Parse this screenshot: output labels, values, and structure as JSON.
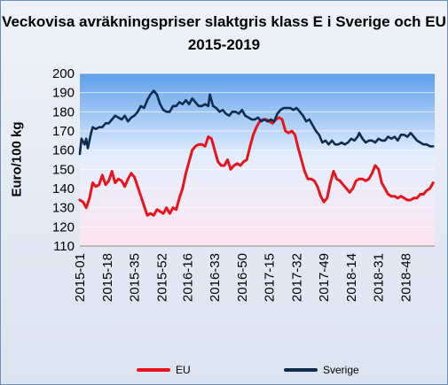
{
  "chart_data": {
    "type": "line",
    "title": "Veckovisa avräkningspriser slaktgris klass E i Sverige och EU 2015-2019",
    "ylabel": "Euro/100 kg",
    "xlabel": "",
    "ylim": [
      110,
      200
    ],
    "yticks": [
      110,
      120,
      130,
      140,
      150,
      160,
      170,
      180,
      190,
      200
    ],
    "xtick_labels": [
      "2015-01",
      "2015-18",
      "2015-35",
      "2015-52",
      "2016-16",
      "2016-33",
      "2016-50",
      "2017-15",
      "2017-32",
      "2017-49",
      "2018-14",
      "2018-31",
      "2018-48"
    ],
    "x_range": [
      "2015-01",
      "2019-14"
    ],
    "grid": true,
    "legend_position": "bottom",
    "series": [
      {
        "name": "EU",
        "color": "#e8141b",
        "points": [
          [
            "2015-01",
            134
          ],
          [
            "2015-03",
            133
          ],
          [
            "2015-05",
            130
          ],
          [
            "2015-07",
            135
          ],
          [
            "2015-09",
            143
          ],
          [
            "2015-11",
            141
          ],
          [
            "2015-13",
            142
          ],
          [
            "2015-15",
            147
          ],
          [
            "2015-17",
            142
          ],
          [
            "2015-19",
            144
          ],
          [
            "2015-21",
            149
          ],
          [
            "2015-23",
            143
          ],
          [
            "2015-25",
            145
          ],
          [
            "2015-27",
            144
          ],
          [
            "2015-29",
            141
          ],
          [
            "2015-31",
            145
          ],
          [
            "2015-33",
            148
          ],
          [
            "2015-35",
            146
          ],
          [
            "2015-37",
            141
          ],
          [
            "2015-39",
            136
          ],
          [
            "2015-41",
            131
          ],
          [
            "2015-43",
            126
          ],
          [
            "2015-45",
            127
          ],
          [
            "2015-47",
            126
          ],
          [
            "2015-49",
            129
          ],
          [
            "2015-51",
            128
          ],
          [
            "2016-01",
            127
          ],
          [
            "2016-03",
            130
          ],
          [
            "2016-05",
            127
          ],
          [
            "2016-07",
            130
          ],
          [
            "2016-09",
            129
          ],
          [
            "2016-11",
            135
          ],
          [
            "2016-13",
            140
          ],
          [
            "2016-15",
            148
          ],
          [
            "2016-17",
            154
          ],
          [
            "2016-19",
            160
          ],
          [
            "2016-21",
            162
          ],
          [
            "2016-23",
            163
          ],
          [
            "2016-25",
            163
          ],
          [
            "2016-27",
            162
          ],
          [
            "2016-29",
            167
          ],
          [
            "2016-31",
            166
          ],
          [
            "2016-33",
            160
          ],
          [
            "2016-35",
            154
          ],
          [
            "2016-37",
            152
          ],
          [
            "2016-39",
            152
          ],
          [
            "2016-41",
            155
          ],
          [
            "2016-43",
            150
          ],
          [
            "2016-45",
            152
          ],
          [
            "2016-47",
            153
          ],
          [
            "2016-49",
            152
          ],
          [
            "2016-51",
            154
          ],
          [
            "2017-01",
            155
          ],
          [
            "2017-03",
            162
          ],
          [
            "2017-05",
            168
          ],
          [
            "2017-07",
            172
          ],
          [
            "2017-09",
            175
          ],
          [
            "2017-11",
            176
          ],
          [
            "2017-13",
            176
          ],
          [
            "2017-15",
            175
          ],
          [
            "2017-17",
            174
          ],
          [
            "2017-19",
            176
          ],
          [
            "2017-21",
            177
          ],
          [
            "2017-23",
            176
          ],
          [
            "2017-25",
            170
          ],
          [
            "2017-27",
            169
          ],
          [
            "2017-29",
            170
          ],
          [
            "2017-31",
            168
          ],
          [
            "2017-33",
            161
          ],
          [
            "2017-35",
            155
          ],
          [
            "2017-37",
            149
          ],
          [
            "2017-39",
            145
          ],
          [
            "2017-41",
            145
          ],
          [
            "2017-43",
            144
          ],
          [
            "2017-45",
            141
          ],
          [
            "2017-47",
            136
          ],
          [
            "2017-49",
            133
          ],
          [
            "2017-51",
            135
          ],
          [
            "2018-01",
            143
          ],
          [
            "2018-03",
            149
          ],
          [
            "2018-05",
            145
          ],
          [
            "2018-07",
            144
          ],
          [
            "2018-09",
            142
          ],
          [
            "2018-11",
            140
          ],
          [
            "2018-13",
            138
          ],
          [
            "2018-15",
            140
          ],
          [
            "2018-17",
            144
          ],
          [
            "2018-19",
            145
          ],
          [
            "2018-21",
            145
          ],
          [
            "2018-23",
            144
          ],
          [
            "2018-25",
            145
          ],
          [
            "2018-27",
            148
          ],
          [
            "2018-29",
            152
          ],
          [
            "2018-31",
            150
          ],
          [
            "2018-33",
            143
          ],
          [
            "2018-35",
            140
          ],
          [
            "2018-37",
            137
          ],
          [
            "2018-39",
            136
          ],
          [
            "2018-41",
            136
          ],
          [
            "2018-43",
            135
          ],
          [
            "2018-45",
            136
          ],
          [
            "2018-47",
            135
          ],
          [
            "2018-49",
            134
          ],
          [
            "2018-51",
            134
          ],
          [
            "2019-01",
            135
          ],
          [
            "2019-03",
            135
          ],
          [
            "2019-05",
            137
          ],
          [
            "2019-07",
            137
          ],
          [
            "2019-09",
            139
          ],
          [
            "2019-11",
            140
          ],
          [
            "2019-13",
            143
          ]
        ]
      },
      {
        "name": "Sverige",
        "color": "#0f2b4d",
        "points": [
          [
            "2015-01",
            158
          ],
          [
            "2015-02",
            166
          ],
          [
            "2015-04",
            163
          ],
          [
            "2015-05",
            166
          ],
          [
            "2015-06",
            161
          ],
          [
            "2015-08",
            169
          ],
          [
            "2015-09",
            172
          ],
          [
            "2015-11",
            171
          ],
          [
            "2015-13",
            172
          ],
          [
            "2015-15",
            172
          ],
          [
            "2015-17",
            174
          ],
          [
            "2015-19",
            174
          ],
          [
            "2015-21",
            176
          ],
          [
            "2015-23",
            178
          ],
          [
            "2015-25",
            177
          ],
          [
            "2015-27",
            176
          ],
          [
            "2015-29",
            178
          ],
          [
            "2015-31",
            175
          ],
          [
            "2015-33",
            177
          ],
          [
            "2015-35",
            178
          ],
          [
            "2015-37",
            180
          ],
          [
            "2015-39",
            183
          ],
          [
            "2015-41",
            182
          ],
          [
            "2015-43",
            186
          ],
          [
            "2015-45",
            189
          ],
          [
            "2015-47",
            191
          ],
          [
            "2015-49",
            189
          ],
          [
            "2015-51",
            184
          ],
          [
            "2016-01",
            181
          ],
          [
            "2016-03",
            180
          ],
          [
            "2016-05",
            180
          ],
          [
            "2016-07",
            183
          ],
          [
            "2016-09",
            183
          ],
          [
            "2016-11",
            185
          ],
          [
            "2016-13",
            184
          ],
          [
            "2016-15",
            186
          ],
          [
            "2016-17",
            184
          ],
          [
            "2016-19",
            187
          ],
          [
            "2016-21",
            185
          ],
          [
            "2016-23",
            183
          ],
          [
            "2016-25",
            183
          ],
          [
            "2016-27",
            184
          ],
          [
            "2016-29",
            183
          ],
          [
            "2016-30",
            189
          ],
          [
            "2016-32",
            183
          ],
          [
            "2016-34",
            182
          ],
          [
            "2016-36",
            180
          ],
          [
            "2016-38",
            181
          ],
          [
            "2016-40",
            179
          ],
          [
            "2016-42",
            178
          ],
          [
            "2016-44",
            180
          ],
          [
            "2016-46",
            180
          ],
          [
            "2016-48",
            179
          ],
          [
            "2016-50",
            181
          ],
          [
            "2016-52",
            178
          ],
          [
            "2017-02",
            177
          ],
          [
            "2017-04",
            176
          ],
          [
            "2017-06",
            176
          ],
          [
            "2017-08",
            177
          ],
          [
            "2017-10",
            175
          ],
          [
            "2017-12",
            176
          ],
          [
            "2017-14",
            175
          ],
          [
            "2017-16",
            176
          ],
          [
            "2017-18",
            175
          ],
          [
            "2017-20",
            179
          ],
          [
            "2017-22",
            181
          ],
          [
            "2017-24",
            182
          ],
          [
            "2017-26",
            182
          ],
          [
            "2017-28",
            182
          ],
          [
            "2017-30",
            181
          ],
          [
            "2017-32",
            182
          ],
          [
            "2017-34",
            180
          ],
          [
            "2017-36",
            178
          ],
          [
            "2017-38",
            175
          ],
          [
            "2017-40",
            176
          ],
          [
            "2017-42",
            173
          ],
          [
            "2017-44",
            170
          ],
          [
            "2017-46",
            168
          ],
          [
            "2017-48",
            164
          ],
          [
            "2017-50",
            165
          ],
          [
            "2017-52",
            163
          ],
          [
            "2018-02",
            165
          ],
          [
            "2018-04",
            163
          ],
          [
            "2018-06",
            163
          ],
          [
            "2018-08",
            164
          ],
          [
            "2018-10",
            163
          ],
          [
            "2018-12",
            164
          ],
          [
            "2018-14",
            166
          ],
          [
            "2018-16",
            165
          ],
          [
            "2018-18",
            167
          ],
          [
            "2018-19",
            169
          ],
          [
            "2018-21",
            166
          ],
          [
            "2018-23",
            164
          ],
          [
            "2018-25",
            165
          ],
          [
            "2018-27",
            165
          ],
          [
            "2018-29",
            164
          ],
          [
            "2018-31",
            166
          ],
          [
            "2018-33",
            165
          ],
          [
            "2018-35",
            165
          ],
          [
            "2018-37",
            167
          ],
          [
            "2018-39",
            166
          ],
          [
            "2018-41",
            167
          ],
          [
            "2018-43",
            165
          ],
          [
            "2018-45",
            168
          ],
          [
            "2018-47",
            168
          ],
          [
            "2018-49",
            167
          ],
          [
            "2018-51",
            169
          ],
          [
            "2019-01",
            167
          ],
          [
            "2019-03",
            165
          ],
          [
            "2019-05",
            164
          ],
          [
            "2019-07",
            163
          ],
          [
            "2019-09",
            163
          ],
          [
            "2019-11",
            162
          ],
          [
            "2019-13",
            162
          ]
        ]
      }
    ]
  }
}
